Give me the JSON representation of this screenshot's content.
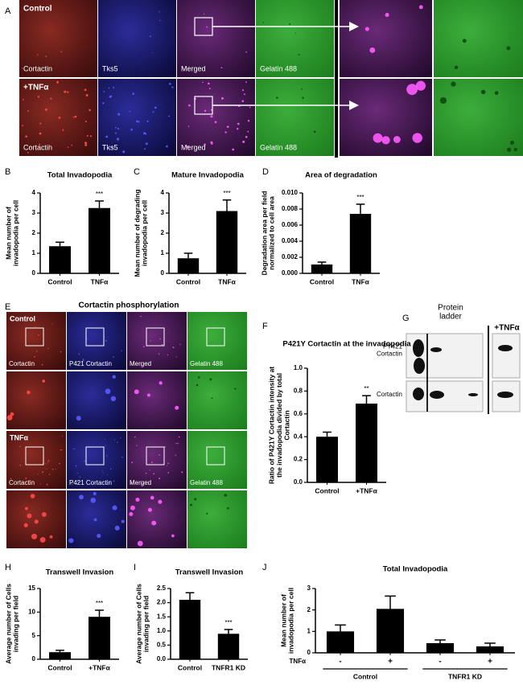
{
  "panel_letters": [
    "A",
    "B",
    "C",
    "D",
    "E",
    "F",
    "G",
    "H",
    "I",
    "J"
  ],
  "panel_a": {
    "rows": [
      {
        "label": "Control",
        "channels": [
          "Cortactin",
          "Tks5",
          "Merged",
          "Gelatin 488"
        ]
      },
      {
        "label": "+TNFα",
        "channels": [
          "Cortactin",
          "Tks5",
          "Merged",
          "Gelatin 488"
        ]
      }
    ]
  },
  "panel_e": {
    "title": "Cortactin phosphorylation",
    "rows": [
      {
        "label": "Control",
        "channels": [
          "Cortactin",
          "P421 Cortactin",
          "Merged",
          "Gelatin 488"
        ]
      },
      {
        "label": "TNFα",
        "channels": [
          "Cortactin",
          "P421 Cortactin",
          "Merged",
          "Gelatin 488"
        ]
      }
    ]
  },
  "panel_g": {
    "columns": [
      "Protein ladder",
      "+TNFα"
    ],
    "rows": [
      "PY421 Cortactin",
      "Cortactin"
    ]
  },
  "chart_data": [
    {
      "type": "bar",
      "title": "Total Invadopodia",
      "y_label": "Mean number of invadopodia per cell",
      "categories": [
        "Control",
        "TNFα"
      ],
      "values": [
        1.35,
        3.25
      ],
      "errors": [
        0.2,
        0.35
      ],
      "significance": [
        null,
        "***"
      ],
      "color": "#000000",
      "ylim": [
        0,
        4
      ],
      "yticks": [
        0,
        1,
        2,
        3,
        4
      ]
    },
    {
      "type": "bar",
      "title": "Mature Invadopodia",
      "y_label": "Mean number of degrading invadopodia per cell",
      "categories": [
        "Control",
        "TNFα"
      ],
      "values": [
        0.75,
        3.1
      ],
      "errors": [
        0.25,
        0.55
      ],
      "significance": [
        null,
        "***"
      ],
      "color": "#000000",
      "ylim": [
        0,
        4
      ],
      "yticks": [
        0,
        1,
        2,
        3,
        4
      ]
    },
    {
      "type": "bar",
      "title": "Area of degradation",
      "y_label": "Degradation area per field normalized to cell area",
      "categories": [
        "Control",
        "TNFα"
      ],
      "values": [
        0.0011,
        0.0074
      ],
      "errors": [
        0.0003,
        0.0012
      ],
      "significance": [
        null,
        "***"
      ],
      "color": "#000000",
      "ylim": [
        0,
        0.01
      ],
      "yticks": [
        {
          "value": 0,
          "label": "0.000"
        },
        0.002,
        0.004,
        0.006,
        0.008,
        {
          "value": 0.01,
          "label": "0.010"
        }
      ]
    },
    {
      "type": "bar",
      "title": "P421Y Cortactin at the invadopodia",
      "y_label": "Ratio of P421Y Cortactin intensity at the invadopodia divided by total Cortactin",
      "categories": [
        "Control",
        "+TNFα"
      ],
      "values": [
        0.4,
        0.69
      ],
      "errors": [
        0.04,
        0.07
      ],
      "significance": [
        null,
        "**"
      ],
      "color": "#000000",
      "ylim": [
        0,
        1
      ],
      "yticks": [
        {
          "value": 0,
          "label": "0.0"
        },
        0.2,
        0.4,
        0.6,
        0.8,
        {
          "value": 1,
          "label": "1.0"
        }
      ]
    },
    {
      "type": "bar",
      "title": "Transwell Invasion",
      "y_label": "Average number of Cells invading per field",
      "categories": [
        "Control",
        "+TNFα"
      ],
      "values": [
        1.5,
        9
      ],
      "errors": [
        0.4,
        1.4
      ],
      "significance": [
        null,
        "***"
      ],
      "color": "#000000",
      "ylim": [
        0,
        15
      ],
      "yticks": [
        0,
        5,
        10,
        15
      ]
    },
    {
      "type": "bar",
      "title": "Transwell Invasion",
      "y_label": "Average number of Cells invading per field",
      "categories": [
        "Control",
        "TNFR1 KD"
      ],
      "values": [
        2.1,
        0.9
      ],
      "errors": [
        0.25,
        0.15
      ],
      "significance": [
        null,
        "***"
      ],
      "color": "#000000",
      "ylim": [
        0,
        2.5
      ],
      "yticks": [
        {
          "value": 0,
          "label": "0.0"
        },
        0.5,
        {
          "value": 1,
          "label": "1.0"
        },
        1.5,
        {
          "value": 2,
          "label": "2.0"
        },
        2.5
      ]
    },
    {
      "type": "bar",
      "title": "Total Invadopodia",
      "y_label": "Mean number of invadopodia per cell",
      "categories": [
        "-",
        "+",
        "-",
        "+"
      ],
      "treatment_label": "TNFα",
      "groups": [
        "Control",
        "TNFR1 KD"
      ],
      "values": [
        1.0,
        2.05,
        0.45,
        0.3
      ],
      "errors": [
        0.3,
        0.6,
        0.15,
        0.15
      ],
      "color": "#000000",
      "ylim": [
        0,
        3
      ],
      "yticks": [
        0,
        1,
        2,
        3
      ]
    }
  ]
}
